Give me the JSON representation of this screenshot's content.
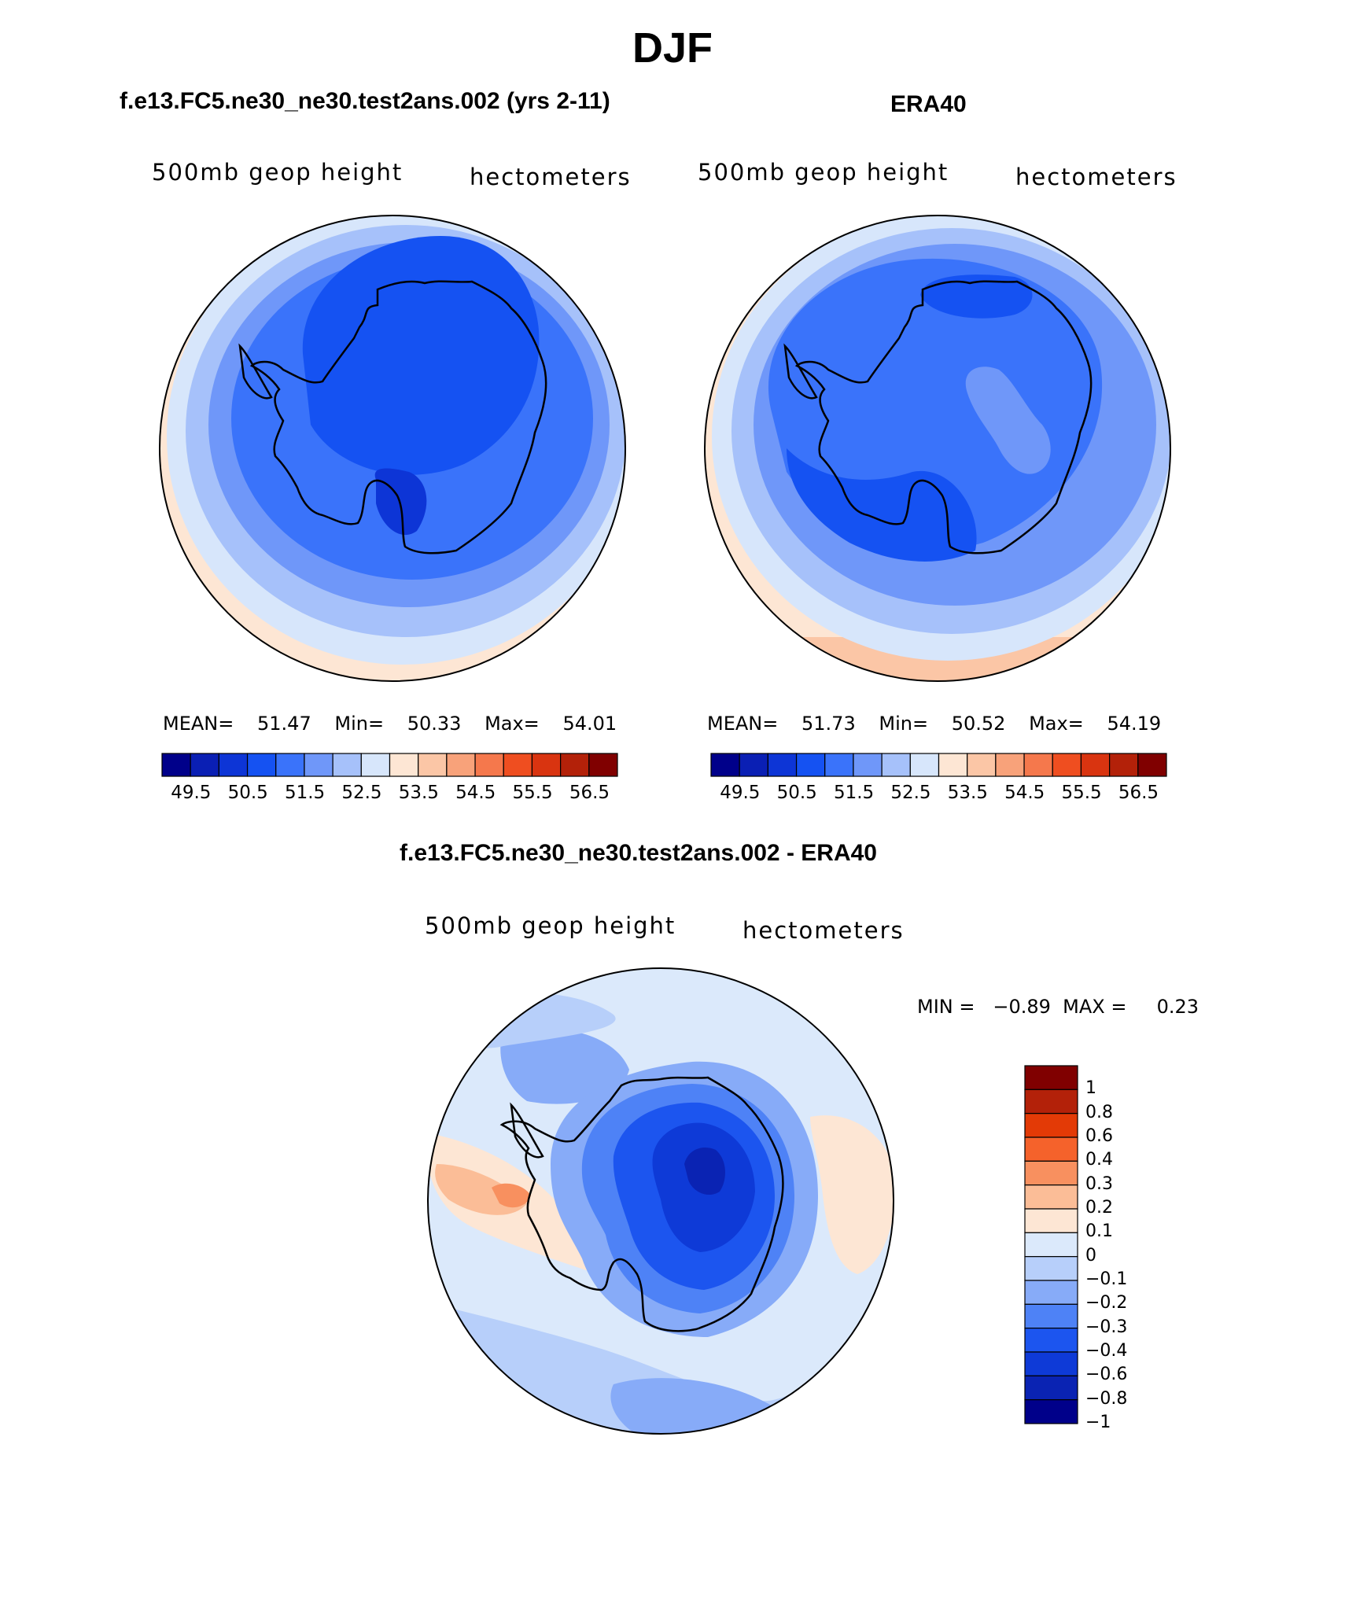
{
  "figure": {
    "title": "DJF"
  },
  "panels": {
    "left": {
      "title": "f.e13.FC5.ne30_ne30.test2ans.002 (yrs 2-11)",
      "variable": "500mb geop height",
      "units": "hectometers",
      "mean_label": "MEAN=",
      "mean": "51.47",
      "min_label": "Min=",
      "min": "50.33",
      "max_label": "Max=",
      "max": "54.01"
    },
    "right": {
      "title": "ERA40",
      "variable": "500mb geop height",
      "units": "hectometers",
      "mean_label": "MEAN=",
      "mean": "51.73",
      "min_label": "Min=",
      "min": "50.52",
      "max_label": "Max=",
      "max": "54.19"
    },
    "diff": {
      "title": "f.e13.FC5.ne30_ne30.test2ans.002 - ERA40",
      "variable": "500mb geop height",
      "units": "hectometers",
      "minmax_text": "MIN =   −0.89  MAX =     0.23"
    }
  },
  "colorbars": {
    "abs_colors": [
      "#00008a",
      "#0a1fb4",
      "#0d35d6",
      "#1552f2",
      "#3a73fa",
      "#6f97f9",
      "#a6c1fa",
      "#d7e6fb",
      "#fde6d4",
      "#fbc6a6",
      "#f8a27a",
      "#f5784c",
      "#ef4e20",
      "#d93410",
      "#b32109",
      "#800000"
    ],
    "abs_ticks": [
      "49.5",
      "50.5",
      "51.5",
      "52.5",
      "53.5",
      "54.5",
      "55.5",
      "56.5"
    ],
    "diff_colors": [
      "#800000",
      "#b32109",
      "#e33a06",
      "#f5622b",
      "#f8905f",
      "#fbbd97",
      "#fde6d4",
      "#dbe9fb",
      "#b7cffa",
      "#87abf8",
      "#4e82f6",
      "#1c55ef",
      "#0e3ad7",
      "#0a23b3",
      "#00008a"
    ],
    "diff_ticks": [
      "1",
      "0.8",
      "0.6",
      "0.4",
      "0.3",
      "0.2",
      "0.1",
      "0",
      "−0.1",
      "−0.2",
      "−0.3",
      "−0.4",
      "−0.6",
      "−0.8",
      "−1"
    ]
  }
}
